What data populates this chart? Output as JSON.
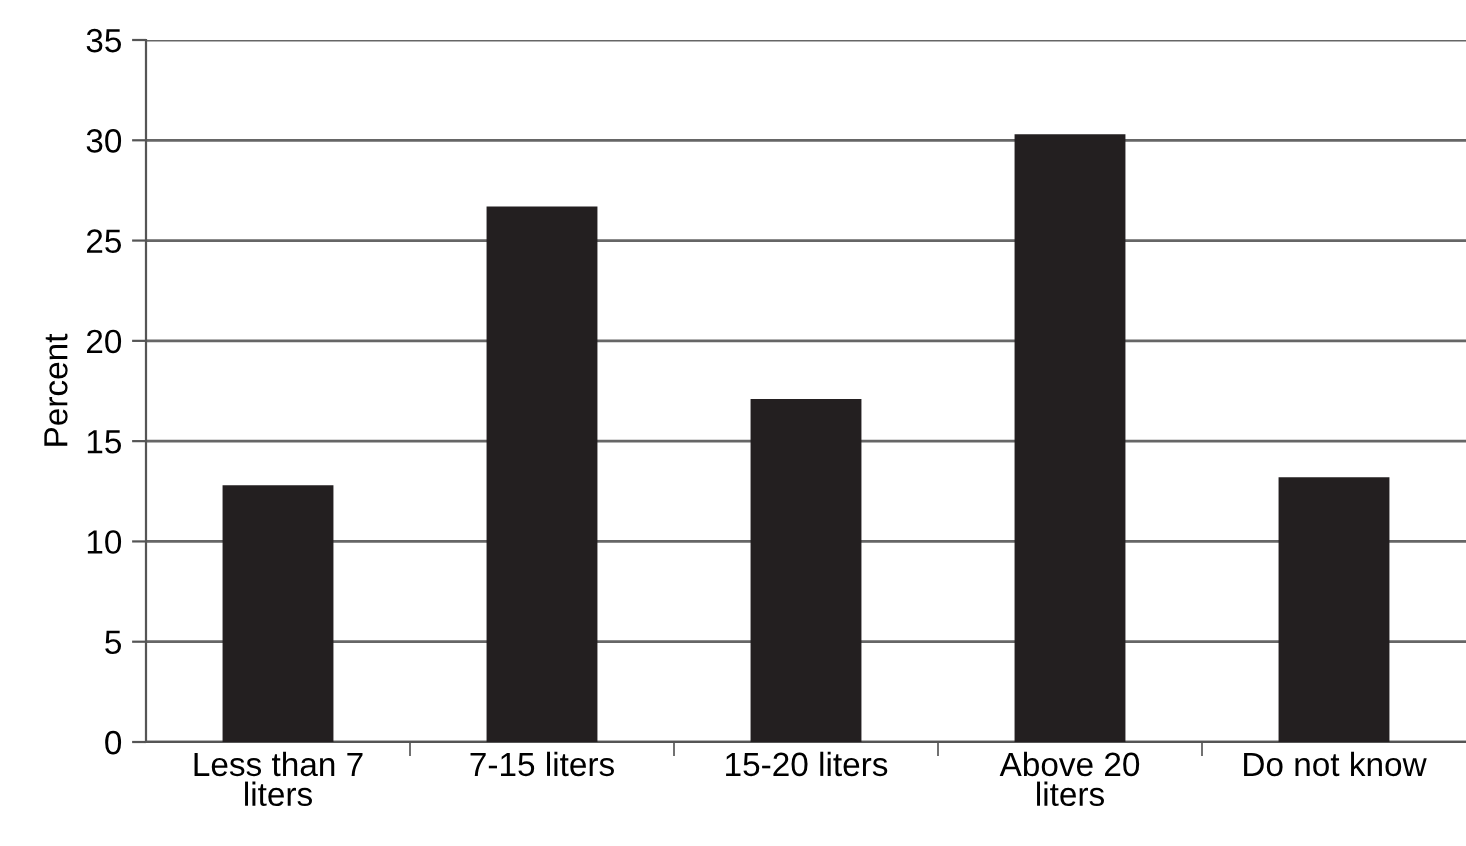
{
  "chart_data": {
    "type": "bar",
    "ylabel": "Percent",
    "categories": [
      "Less than 7\nliters",
      "7-15 liters",
      "15-20 liters",
      "Above 20\nliters",
      "Do not know"
    ],
    "values": [
      12.8,
      26.7,
      17.1,
      30.3,
      13.2
    ],
    "color": "#231f20",
    "ylim": [
      0,
      35
    ],
    "yticks": [
      0,
      5,
      10,
      15,
      20,
      25,
      30,
      35
    ],
    "grid": "y"
  }
}
